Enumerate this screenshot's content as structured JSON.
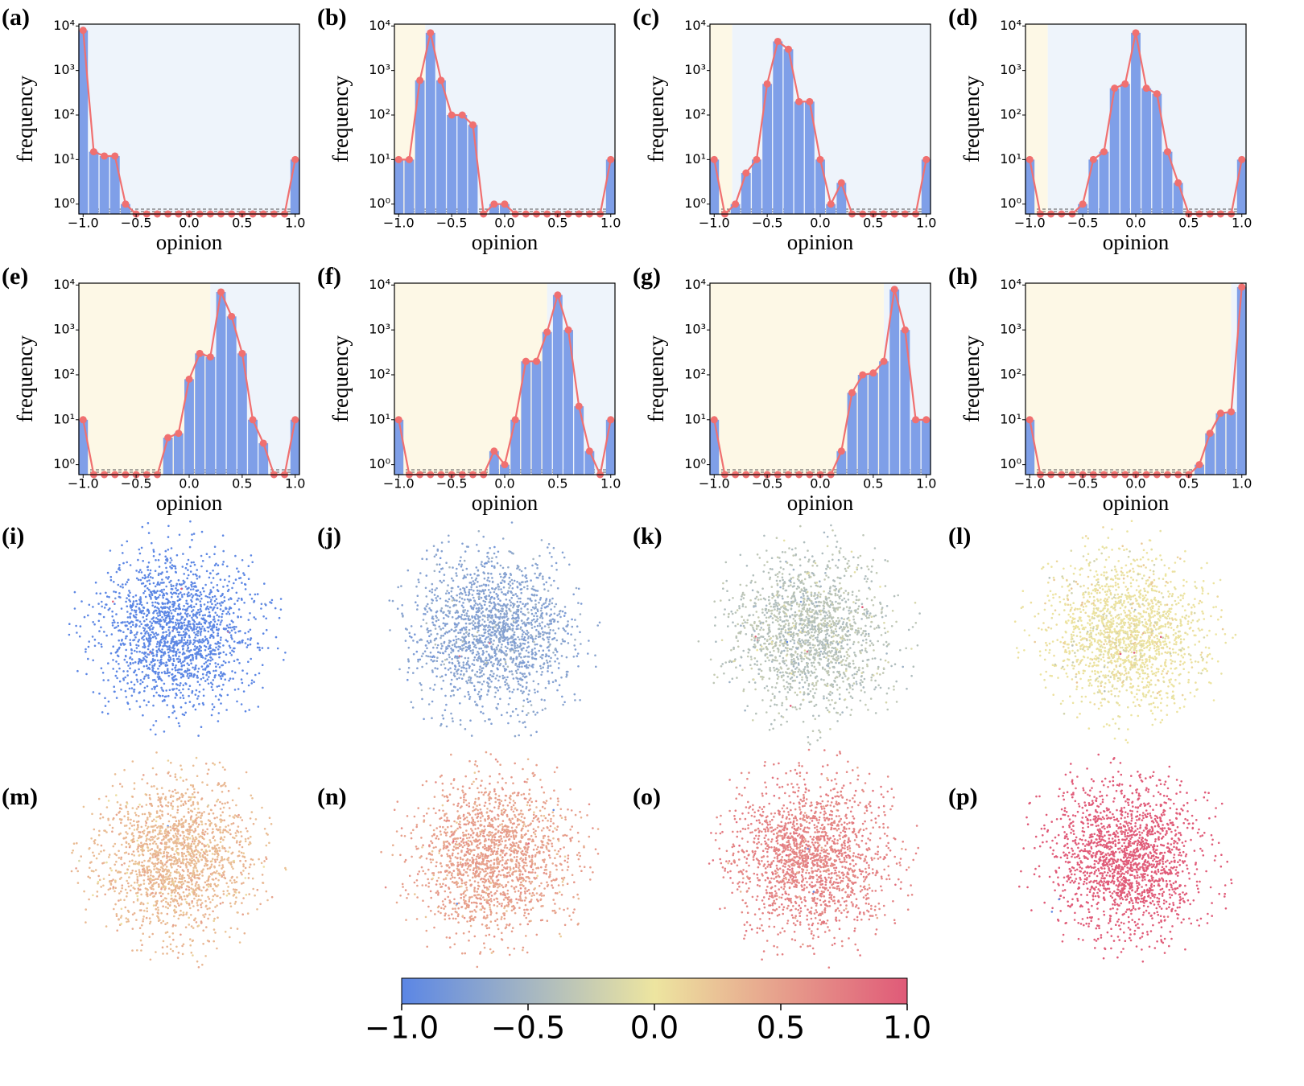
{
  "chart_data": [
    {
      "type": "bar",
      "label": "(a)",
      "xlabel": "opinion",
      "ylabel": "frequency",
      "background_split": -1.04,
      "x": [
        -1.0,
        -0.9,
        -0.8,
        -0.7,
        -0.6,
        -0.5,
        -0.4,
        -0.3,
        -0.2,
        -0.1,
        0.0,
        0.1,
        0.2,
        0.3,
        0.4,
        0.5,
        0.6,
        0.7,
        0.8,
        0.9,
        1.0
      ],
      "values": [
        8000,
        15,
        12,
        12,
        1,
        0,
        0,
        0,
        0,
        0,
        0,
        0,
        0,
        0,
        0,
        0,
        0,
        0,
        0,
        0,
        10
      ]
    },
    {
      "type": "bar",
      "label": "(b)",
      "xlabel": "opinion",
      "ylabel": "frequency",
      "background_split": -0.75,
      "x": [
        -1.0,
        -0.9,
        -0.8,
        -0.7,
        -0.6,
        -0.5,
        -0.4,
        -0.3,
        -0.2,
        -0.1,
        0.0,
        0.1,
        0.2,
        0.3,
        0.4,
        0.5,
        0.6,
        0.7,
        0.8,
        0.9,
        1.0
      ],
      "values": [
        10,
        10,
        600,
        7000,
        600,
        100,
        100,
        60,
        0,
        1,
        1,
        0,
        0,
        0,
        0,
        0,
        0,
        0,
        0,
        0,
        10
      ]
    },
    {
      "type": "bar",
      "label": "(c)",
      "xlabel": "opinion",
      "ylabel": "frequency",
      "background_split": -0.83,
      "x": [
        -1.0,
        -0.9,
        -0.8,
        -0.7,
        -0.6,
        -0.5,
        -0.4,
        -0.3,
        -0.2,
        -0.1,
        0.0,
        0.1,
        0.2,
        0.3,
        0.4,
        0.5,
        0.6,
        0.7,
        0.8,
        0.9,
        1.0
      ],
      "values": [
        10,
        0,
        1,
        5,
        10,
        500,
        4500,
        3000,
        200,
        200,
        10,
        1,
        3,
        0,
        0,
        0,
        0,
        0,
        0,
        0,
        10
      ]
    },
    {
      "type": "bar",
      "label": "(d)",
      "xlabel": "opinion",
      "ylabel": "frequency",
      "background_split": -0.83,
      "x": [
        -1.0,
        -0.9,
        -0.8,
        -0.7,
        -0.6,
        -0.5,
        -0.4,
        -0.3,
        -0.2,
        -0.1,
        0.0,
        0.1,
        0.2,
        0.3,
        0.4,
        0.5,
        0.6,
        0.7,
        0.8,
        0.9,
        1.0
      ],
      "values": [
        10,
        0,
        0,
        0,
        0,
        1,
        10,
        15,
        400,
        500,
        7000,
        400,
        300,
        15,
        3,
        0,
        0,
        0,
        0,
        0,
        10
      ]
    },
    {
      "type": "bar",
      "label": "(e)",
      "xlabel": "opinion",
      "ylabel": "frequency",
      "background_split": 0.2,
      "x": [
        -1.0,
        -0.9,
        -0.8,
        -0.7,
        -0.6,
        -0.5,
        -0.4,
        -0.3,
        -0.2,
        -0.1,
        0.0,
        0.1,
        0.2,
        0.3,
        0.4,
        0.5,
        0.6,
        0.7,
        0.8,
        0.9,
        1.0
      ],
      "values": [
        10,
        0,
        0,
        0,
        0,
        0,
        0,
        0,
        4,
        5,
        80,
        300,
        250,
        7000,
        2000,
        300,
        10,
        3,
        0,
        0,
        10
      ]
    },
    {
      "type": "bar",
      "label": "(f)",
      "xlabel": "opinion",
      "ylabel": "frequency",
      "background_split": 0.4,
      "x": [
        -1.0,
        -0.9,
        -0.8,
        -0.7,
        -0.6,
        -0.5,
        -0.4,
        -0.3,
        -0.2,
        -0.1,
        0.0,
        0.1,
        0.2,
        0.3,
        0.4,
        0.5,
        0.6,
        0.7,
        0.8,
        0.9,
        1.0
      ],
      "values": [
        10,
        0,
        0,
        0,
        0,
        0,
        0,
        0,
        0,
        2,
        1,
        10,
        200,
        200,
        900,
        6000,
        1000,
        20,
        2,
        0,
        10
      ]
    },
    {
      "type": "bar",
      "label": "(g)",
      "xlabel": "opinion",
      "ylabel": "frequency",
      "background_split": 0.6,
      "x": [
        -1.0,
        -0.9,
        -0.8,
        -0.7,
        -0.6,
        -0.5,
        -0.4,
        -0.3,
        -0.2,
        -0.1,
        0.0,
        0.1,
        0.2,
        0.3,
        0.4,
        0.5,
        0.6,
        0.7,
        0.8,
        0.9,
        1.0
      ],
      "values": [
        10,
        0,
        0,
        0,
        0,
        0,
        0,
        0,
        0,
        0,
        0,
        0,
        2,
        40,
        100,
        110,
        200,
        8000,
        1000,
        10,
        10
      ]
    },
    {
      "type": "bar",
      "label": "(h)",
      "xlabel": "opinion",
      "ylabel": "frequency",
      "background_split": 0.9,
      "x": [
        -1.0,
        -0.9,
        -0.8,
        -0.7,
        -0.6,
        -0.5,
        -0.4,
        -0.3,
        -0.2,
        -0.1,
        0.0,
        0.1,
        0.2,
        0.3,
        0.4,
        0.5,
        0.6,
        0.7,
        0.8,
        0.9,
        1.0
      ],
      "values": [
        10,
        0,
        0,
        0,
        0,
        0,
        0,
        0,
        0,
        0,
        0,
        0,
        0,
        0,
        0,
        0,
        1,
        5,
        14,
        15,
        9000
      ]
    },
    {
      "type": "network",
      "label": "(i)"
    },
    {
      "type": "network",
      "label": "(j)"
    },
    {
      "type": "network",
      "label": "(k)"
    },
    {
      "type": "network",
      "label": "(l)"
    },
    {
      "type": "network",
      "label": "(m)"
    },
    {
      "type": "network",
      "label": "(n)"
    },
    {
      "type": "network",
      "label": "(o)"
    },
    {
      "type": "network",
      "label": "(p)"
    },
    {
      "type": "colorbar",
      "lim": [
        -1,
        1
      ],
      "colors": [
        "#5b86e5",
        "#ede5a0",
        "#e05a78"
      ],
      "ticks": [
        {
          "value": -1,
          "label": "−1.0"
        },
        {
          "value": -0.5,
          "label": "−0.5"
        },
        {
          "value": 0,
          "label": "0.0"
        },
        {
          "value": 0.5,
          "label": "0.5"
        },
        {
          "value": 1,
          "label": "1.0"
        }
      ]
    }
  ],
  "style": {
    "bar_color": "#7f9fe8",
    "line_color": "#f07070",
    "left_background": "#fdf8e6",
    "right_background": "#eef4fb",
    "log_y": true,
    "xlim": [
      -1.04,
      1.04
    ],
    "ylim": [
      0.6,
      11000
    ],
    "xticks": [
      {
        "value": -1,
        "label": "−1.0"
      },
      {
        "value": -0.5,
        "label": "−0.5"
      },
      {
        "value": 0,
        "label": "0.0"
      },
      {
        "value": 0.5,
        "label": "0.5"
      },
      {
        "value": 1,
        "label": "1.0"
      }
    ],
    "yticks": [
      {
        "value": 1,
        "label": "10⁰"
      },
      {
        "value": 10,
        "label": "10¹"
      },
      {
        "value": 100,
        "label": "10²"
      },
      {
        "value": 1000,
        "label": "10³"
      },
      {
        "value": 10000,
        "label": "10⁴"
      }
    ]
  }
}
